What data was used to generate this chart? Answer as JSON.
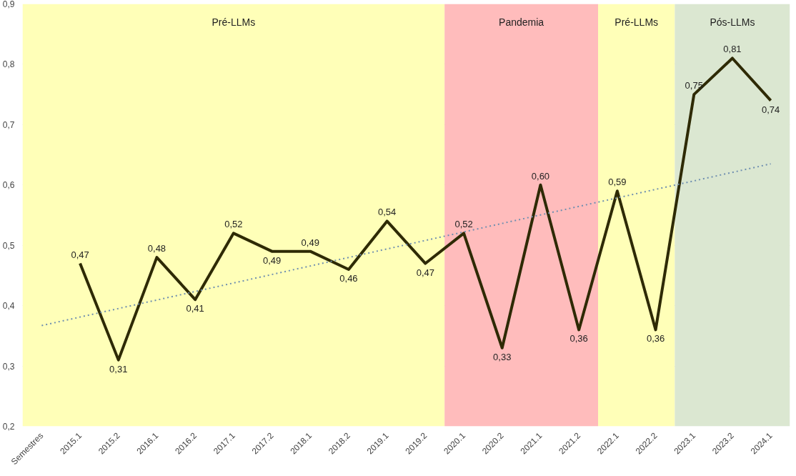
{
  "chart_data": {
    "type": "line",
    "categories": [
      "Semestres",
      "2015.1",
      "2015.2",
      "2016.1",
      "2016.2",
      "2017.1",
      "2017.2",
      "2018.1",
      "2018.2",
      "2019.1",
      "2019.2",
      "2020.1",
      "2020.2",
      "2021.1",
      "2021.2",
      "2022.1",
      "2022.2",
      "2023.1",
      "2023.2",
      "2024.1"
    ],
    "series": [
      {
        "color": "#2e2a05",
        "values": [
          null,
          0.47,
          0.31,
          0.48,
          0.41,
          0.52,
          0.49,
          0.49,
          0.46,
          0.54,
          0.47,
          0.52,
          0.33,
          0.6,
          0.36,
          0.59,
          0.36,
          0.75,
          0.81,
          0.74
        ],
        "value_labels": [
          null,
          "0,47",
          "0,31",
          "0,48",
          "0,41",
          "0,52",
          "0,49",
          "0,49",
          "0,46",
          "0,54",
          "0,47",
          "0,52",
          "0,33",
          "0,60",
          "0,36",
          "0,59",
          "0,36",
          "0,75",
          "0,81",
          "0,74"
        ]
      },
      {
        "type": "line",
        "color": "#6f8fb0",
        "line_style": "dotted",
        "values": [
          0.367,
          null,
          null,
          null,
          null,
          null,
          null,
          null,
          null,
          null,
          null,
          null,
          null,
          null,
          null,
          null,
          null,
          null,
          null,
          0.635
        ]
      }
    ],
    "ylim": [
      0.2,
      0.9
    ],
    "yticks": [
      {
        "value": 0.2,
        "label": "0,2"
      },
      {
        "value": 0.3,
        "label": "0,3"
      },
      {
        "value": 0.4,
        "label": "0,4"
      },
      {
        "value": 0.5,
        "label": "0,5"
      },
      {
        "value": 0.6,
        "label": "0,6"
      },
      {
        "value": 0.7,
        "label": "0,7"
      },
      {
        "value": 0.8,
        "label": "0,8"
      },
      {
        "value": 0.9,
        "label": "0,9"
      }
    ],
    "grid": "y",
    "bands": [
      {
        "axis": "x",
        "from": "Semestres",
        "to": "2019.2",
        "label": "Pré-LLMs",
        "color": "#ffffb8"
      },
      {
        "axis": "x",
        "from": "2020.1",
        "to": "2021.2",
        "label": "Pandemia",
        "color": "#ffbcbc"
      },
      {
        "axis": "x",
        "from": "2022.1",
        "to": "2022.2",
        "label": "Pré-LLMs",
        "color": "#ffffb8"
      },
      {
        "axis": "x",
        "from": "2023.1",
        "to": "2024.1",
        "label": "Pós-LLMs",
        "color": "#dbe7d1"
      }
    ]
  }
}
